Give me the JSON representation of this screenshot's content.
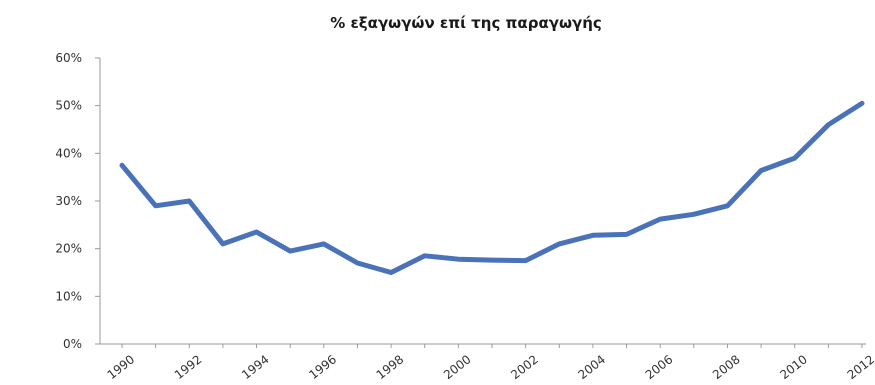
{
  "chart_data": {
    "type": "line",
    "title": "% εξαγωγών επί της παραγωγής",
    "xlabel": "",
    "ylabel": "",
    "x": [
      1990,
      1991,
      1992,
      1993,
      1994,
      1995,
      1996,
      1997,
      1998,
      1999,
      2000,
      2001,
      2002,
      2003,
      2004,
      2005,
      2006,
      2007,
      2008,
      2009,
      2010,
      2011,
      2012
    ],
    "series": [
      {
        "values": [
          0.375,
          0.29,
          0.3,
          0.21,
          0.235,
          0.195,
          0.21,
          0.17,
          0.15,
          0.185,
          0.178,
          0.176,
          0.175,
          0.21,
          0.228,
          0.23,
          0.262,
          0.272,
          0.29,
          0.364,
          0.39,
          0.46,
          0.505
        ],
        "color": "#4a72b8"
      }
    ],
    "ylim": [
      0,
      0.6
    ],
    "y_ticks": [
      "0%",
      "10%",
      "20%",
      "30%",
      "40%",
      "50%",
      "60%"
    ],
    "x_tick_labels": [
      "1990",
      "1992",
      "1994",
      "1996",
      "1998",
      "2000",
      "2002",
      "2004",
      "2006",
      "2008",
      "2010",
      "2012"
    ],
    "grid": false,
    "legend": "none"
  }
}
